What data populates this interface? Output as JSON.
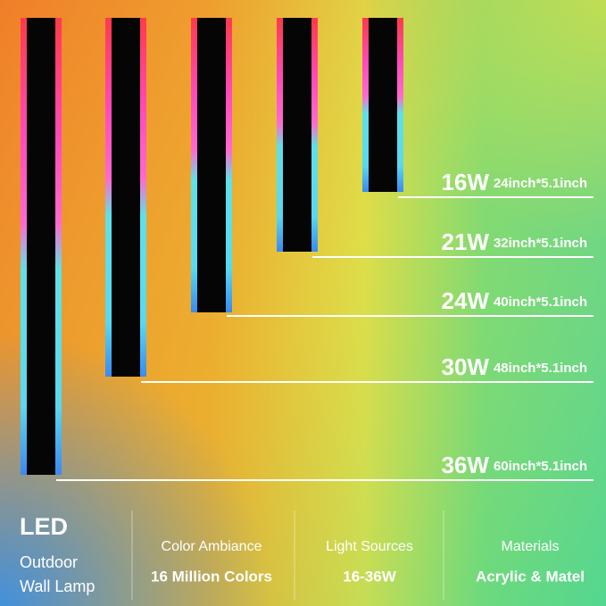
{
  "lamps": [
    {
      "power": "16W",
      "size": "24inch*5.1inch"
    },
    {
      "power": "21W",
      "size": "32inch*5.1inch"
    },
    {
      "power": "24W",
      "size": "40inch*5.1inch"
    },
    {
      "power": "30W",
      "size": "48inch*5.1inch"
    },
    {
      "power": "36W",
      "size": "60inch*5.1inch"
    }
  ],
  "brand": {
    "title": "LED",
    "lines": [
      "Outdoor",
      "Wall Lamp"
    ]
  },
  "features": [
    {
      "label": "Color Ambiance",
      "value": "16 Million Colors"
    },
    {
      "label": "Light Sources",
      "value": "16-36W"
    },
    {
      "label": "Materials",
      "value": "Acrylic & Matel"
    }
  ]
}
